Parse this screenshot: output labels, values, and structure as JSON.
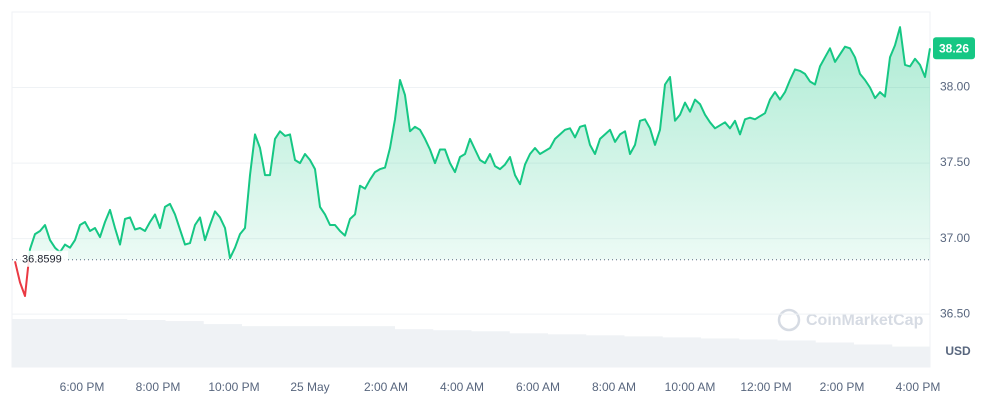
{
  "chart_data": {
    "type": "line",
    "ylim": [
      36.15,
      38.5
    ],
    "yticks": [
      {
        "value": 36.5,
        "label": "36.50"
      },
      {
        "value": 37,
        "label": "37.00"
      },
      {
        "value": 37.5,
        "label": "37.50"
      },
      {
        "value": 38,
        "label": "38.00"
      }
    ],
    "xlabels": [
      "6:00 PM",
      "8:00 PM",
      "10:00 PM",
      "25 May",
      "2:00 AM",
      "4:00 AM",
      "6:00 AM",
      "8:00 AM",
      "10:00 AM",
      "12:00 PM",
      "2:00 PM",
      "4:00 PM"
    ],
    "baseline": 36.8599,
    "current_price": 38.26,
    "currency": "USD",
    "watermark": "CoinMarketCap",
    "up_color": "#16c784",
    "down_color": "#ea3943",
    "grid": true,
    "values": [
      36.85,
      36.71,
      36.62,
      36.93,
      37.03,
      37.05,
      37.09,
      36.99,
      36.94,
      36.91,
      36.96,
      36.94,
      36.99,
      37.09,
      37.11,
      37.05,
      37.07,
      37.01,
      37.11,
      37.19,
      37.07,
      36.96,
      37.13,
      37.14,
      37.06,
      37.07,
      37.05,
      37.11,
      37.16,
      37.07,
      37.21,
      37.23,
      37.16,
      37.06,
      36.96,
      36.97,
      37.09,
      37.14,
      36.99,
      37.09,
      37.18,
      37.14,
      37.07,
      36.87,
      36.94,
      37.03,
      37.07,
      37.42,
      37.69,
      37.6,
      37.42,
      37.42,
      37.66,
      37.71,
      37.68,
      37.69,
      37.52,
      37.5,
      37.56,
      37.52,
      37.46,
      37.21,
      37.16,
      37.09,
      37.09,
      37.05,
      37.02,
      37.13,
      37.16,
      37.35,
      37.33,
      37.39,
      37.44,
      37.46,
      37.47,
      37.6,
      37.79,
      38.05,
      37.95,
      37.71,
      37.74,
      37.72,
      37.66,
      37.59,
      37.5,
      37.59,
      37.59,
      37.5,
      37.44,
      37.54,
      37.56,
      37.66,
      37.59,
      37.52,
      37.5,
      37.56,
      37.48,
      37.46,
      37.49,
      37.54,
      37.42,
      37.36,
      37.49,
      37.56,
      37.6,
      37.56,
      37.58,
      37.6,
      37.66,
      37.69,
      37.72,
      37.73,
      37.67,
      37.74,
      37.75,
      37.62,
      37.56,
      37.66,
      37.69,
      37.72,
      37.64,
      37.69,
      37.71,
      37.56,
      37.62,
      37.78,
      37.79,
      37.73,
      37.62,
      37.72,
      38.02,
      38.07,
      37.78,
      37.82,
      37.9,
      37.84,
      37.92,
      37.89,
      37.82,
      37.77,
      37.73,
      37.75,
      37.77,
      37.73,
      37.78,
      37.69,
      37.79,
      37.8,
      37.79,
      37.81,
      37.83,
      37.92,
      37.97,
      37.92,
      37.97,
      38.05,
      38.12,
      38.11,
      38.09,
      38.04,
      38.02,
      38.14,
      38.2,
      38.26,
      38.17,
      38.22,
      38.27,
      38.26,
      38.2,
      38.09,
      38.05,
      38.0,
      37.93,
      37.97,
      37.94,
      38.2,
      38.28,
      38.4,
      38.15,
      38.14,
      38.19,
      38.15,
      38.07,
      38.26
    ],
    "volume": {
      "color": "#eff2f5",
      "values": [
        47,
        47,
        47,
        46,
        45,
        42,
        40,
        40,
        40,
        40,
        37,
        36,
        35,
        33,
        32,
        31,
        30,
        29,
        28,
        27,
        26,
        24,
        22,
        20
      ]
    }
  }
}
